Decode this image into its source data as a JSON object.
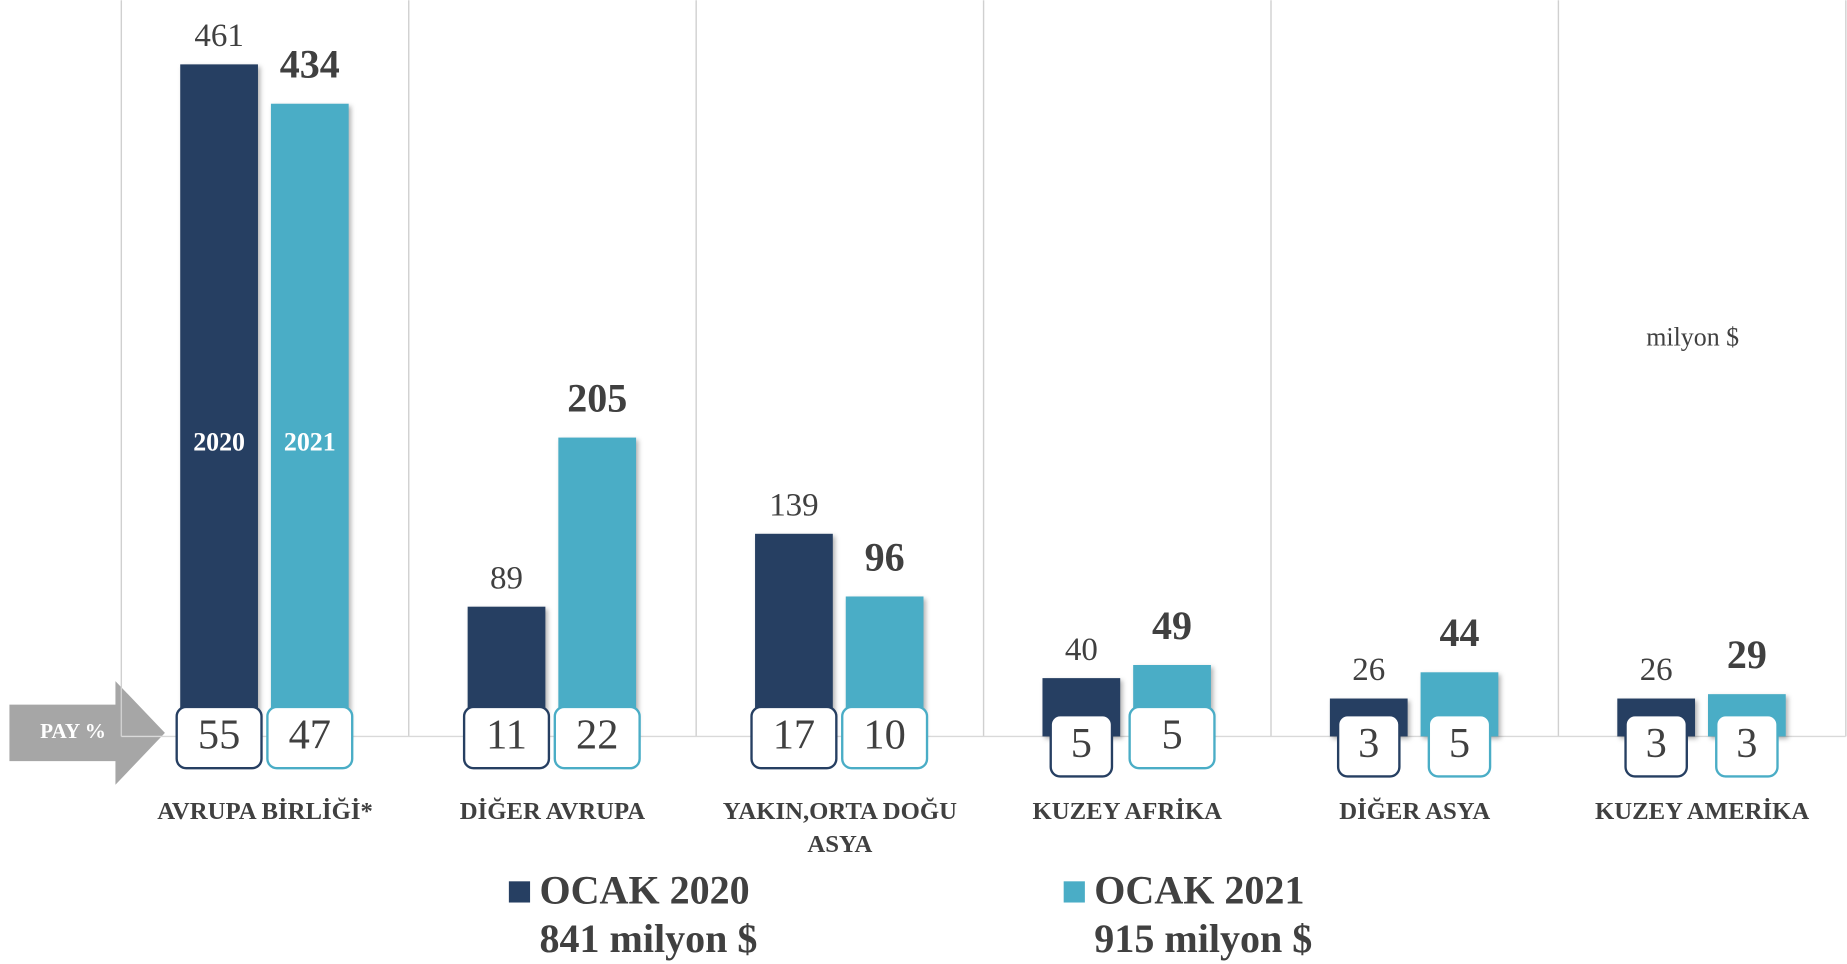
{
  "chart_data": {
    "type": "bar",
    "categories": [
      "AVRUPA BİRLİĞİ*",
      "DİĞER AVRUPA",
      "YAKIN,ORTA DOĞU ASYA",
      "KUZEY AFRİKA",
      "DİĞER ASYA",
      "KUZEY AMERİKA"
    ],
    "series": [
      {
        "name": "OCAK 2020",
        "total": "841 milyon $",
        "bar_label": "2020",
        "color": "#263f62",
        "values": [
          461,
          89,
          139,
          40,
          26,
          26
        ],
        "shares": [
          55,
          11,
          17,
          5,
          3,
          3
        ]
      },
      {
        "name": "OCAK 2021",
        "total": "915 milyon $",
        "bar_label": "2021",
        "color": "#4aadc6",
        "values": [
          434,
          205,
          96,
          49,
          44,
          29
        ],
        "shares": [
          47,
          22,
          10,
          5,
          5,
          3
        ]
      }
    ],
    "ylim": [
      0,
      505
    ],
    "unit_note": "milyon $",
    "share_label": "PAY  %"
  }
}
